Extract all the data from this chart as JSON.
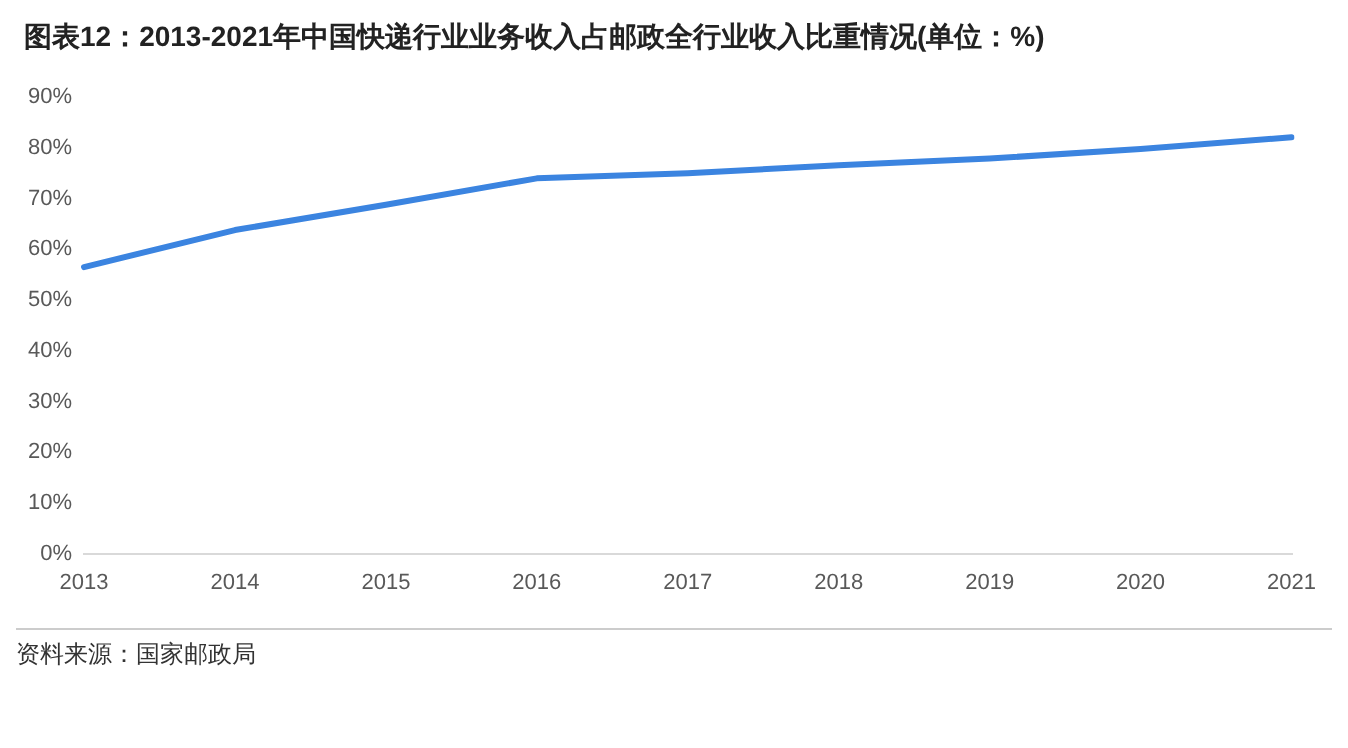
{
  "chart_data": {
    "type": "line",
    "title": "图表12：2013-2021年中国快递行业业务收入占邮政全行业收入比重情况(单位：%)",
    "categories": [
      "2013",
      "2014",
      "2015",
      "2016",
      "2017",
      "2018",
      "2019",
      "2020",
      "2021"
    ],
    "series": [
      {
        "color": "#3b84e0",
        "values": [
          56.5,
          63.8,
          68.8,
          74.0,
          75.0,
          76.6,
          77.9,
          79.8,
          82.1
        ]
      }
    ],
    "ylim": [
      0,
      90
    ],
    "yticks": [
      {
        "value": 0,
        "label": "0%"
      },
      {
        "value": 10,
        "label": "10%"
      },
      {
        "value": 20,
        "label": "20%"
      },
      {
        "value": 30,
        "label": "30%"
      },
      {
        "value": 40,
        "label": "40%"
      },
      {
        "value": 50,
        "label": "50%"
      },
      {
        "value": 60,
        "label": "60%"
      },
      {
        "value": 70,
        "label": "70%"
      },
      {
        "value": 80,
        "label": "80%"
      },
      {
        "value": 90,
        "label": "90%"
      }
    ],
    "grid": false,
    "legend": false,
    "marker": "none",
    "line_style": "solid",
    "annotations": [
      "资料来源：国家邮政局"
    ]
  }
}
